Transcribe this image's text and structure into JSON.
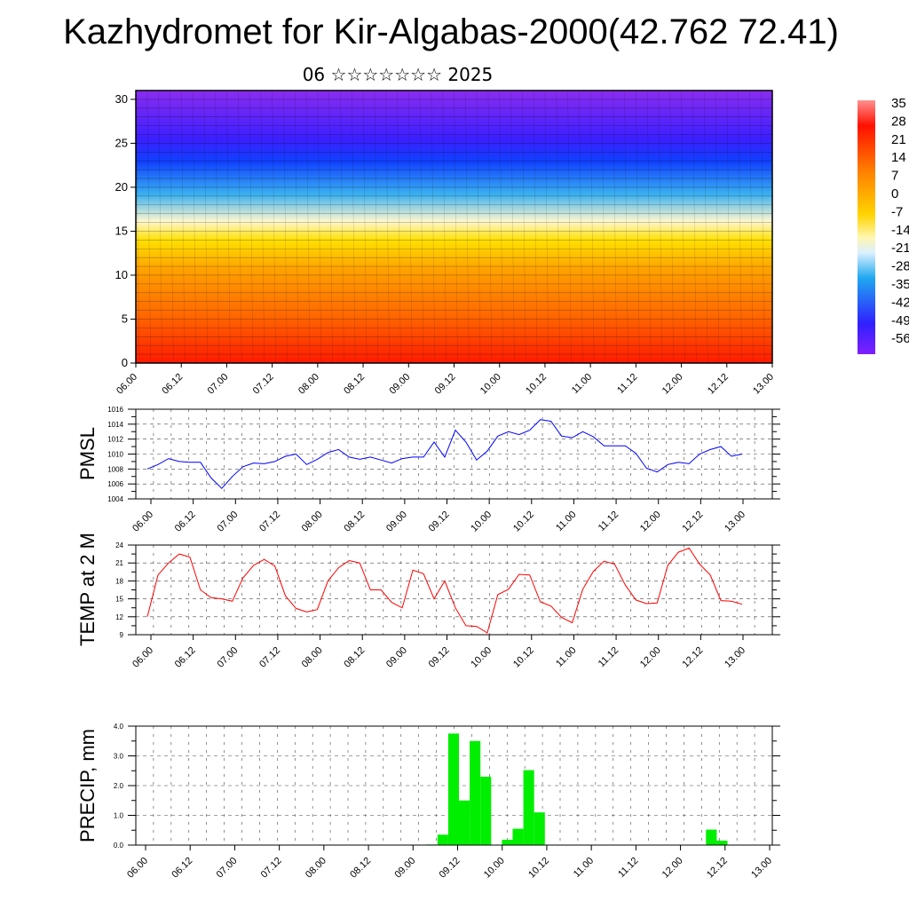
{
  "title": "Kazhydromet for Kir-Algabas-2000(42.762 72.41)",
  "subtitle": "06 ☆☆☆☆☆☆☆ 2025",
  "chart_data": [
    {
      "type": "heatmap",
      "y_ticks": [
        "0",
        "5",
        "10",
        "15",
        "20",
        "25",
        "30"
      ],
      "ylim": [
        0,
        31
      ],
      "x_ticks": [
        "06.00",
        "06.12",
        "07.00",
        "07.12",
        "08.00",
        "08.12",
        "09.00",
        "09.12",
        "10.00",
        "10.12",
        "11.00",
        "11.12",
        "12.00",
        "12.12",
        "13.00"
      ],
      "colorbar_labels": [
        "35",
        "28",
        "21",
        "14",
        "7",
        "0",
        "-7",
        "-14",
        "-21",
        "-28",
        "-35",
        "-42",
        "-49",
        "-56"
      ],
      "colors": [
        "#ff0000",
        "#ff7f00",
        "#ffd700",
        "#fff8c0",
        "#2aaaf0",
        "#2030ff",
        "#7f20ff"
      ]
    },
    {
      "type": "line",
      "ylabel": "PMSL",
      "y_ticks": [
        "1004",
        "1006",
        "1008",
        "1010",
        "1012",
        "1014",
        "1016"
      ],
      "ylim": [
        1004,
        1016
      ],
      "x_ticks": [
        "06.00",
        "06.12",
        "07.00",
        "07.12",
        "08.00",
        "08.12",
        "09.00",
        "09.12",
        "10.00",
        "10.12",
        "11.00",
        "11.12",
        "12.00",
        "12.12",
        "13.00"
      ],
      "values": [
        1008.0,
        1008.6,
        1009.4,
        1009.0,
        1008.9,
        1008.9,
        1006.8,
        1005.4,
        1007.0,
        1008.3,
        1008.8,
        1008.7,
        1009.0,
        1009.7,
        1010.0,
        1008.6,
        1009.3,
        1010.2,
        1010.6,
        1009.6,
        1009.3,
        1009.6,
        1009.2,
        1008.8,
        1009.4,
        1009.6,
        1009.6,
        1011.6,
        1009.6,
        1013.2,
        1011.6,
        1009.2,
        1010.4,
        1012.4,
        1013.0,
        1012.6,
        1013.2,
        1014.6,
        1014.4,
        1012.4,
        1012.2,
        1013.0,
        1012.3,
        1011.1,
        1011.1,
        1011.1,
        1010.1,
        1008.1,
        1007.6,
        1008.6,
        1008.9,
        1008.7,
        1010.0,
        1010.6,
        1011.0,
        1009.7,
        1010.0
      ],
      "color": "#0000ff"
    },
    {
      "type": "line",
      "ylabel": "TEMP at 2 M",
      "y_ticks": [
        "9",
        "12",
        "15",
        "18",
        "21",
        "24"
      ],
      "ylim": [
        9,
        24
      ],
      "x_ticks": [
        "06.00",
        "06.12",
        "07.00",
        "07.12",
        "08.00",
        "08.12",
        "09.00",
        "09.12",
        "10.00",
        "10.12",
        "11.00",
        "11.12",
        "12.00",
        "12.12",
        "13.00"
      ],
      "values": [
        12.0,
        19.0,
        21.0,
        22.5,
        22.0,
        16.5,
        15.2,
        15.0,
        14.6,
        18.5,
        20.6,
        21.6,
        20.5,
        15.5,
        13.4,
        12.8,
        13.2,
        18.0,
        20.2,
        21.4,
        21.0,
        16.5,
        16.5,
        14.4,
        13.5,
        19.8,
        19.2,
        15.0,
        18.0,
        13.5,
        10.5,
        10.4,
        9.3,
        15.7,
        16.6,
        19.1,
        19.0,
        14.5,
        13.8,
        11.9,
        11.0,
        16.6,
        19.6,
        21.3,
        20.8,
        17.3,
        14.8,
        14.2,
        14.3,
        20.6,
        22.8,
        23.5,
        20.8,
        19.0,
        14.7,
        14.6,
        14.1
      ],
      "color": "#ff0000"
    },
    {
      "type": "bar",
      "ylabel": "PRECIP, mm",
      "y_ticks": [
        "0.0",
        "1.0",
        "2.0",
        "3.0",
        "4.0"
      ],
      "ylim": [
        0,
        4
      ],
      "x_ticks": [
        "06.00",
        "06.12",
        "07.00",
        "07.12",
        "08.00",
        "08.12",
        "09.00",
        "09.12",
        "10.00",
        "10.12",
        "11.00",
        "11.12",
        "12.00",
        "12.12",
        "13.00"
      ],
      "values": [
        0,
        0,
        0,
        0,
        0,
        0,
        0,
        0,
        0,
        0,
        0,
        0,
        0,
        0,
        0,
        0,
        0,
        0,
        0,
        0,
        0,
        0,
        0,
        0,
        0,
        0,
        0,
        0.02,
        0.35,
        3.75,
        1.5,
        3.5,
        2.3,
        0,
        0.18,
        0.55,
        2.52,
        1.1,
        0,
        0,
        0,
        0,
        0,
        0,
        0,
        0,
        0,
        0,
        0,
        0,
        0,
        0,
        0,
        0.52,
        0.15,
        0
      ],
      "color": "#00ee00"
    }
  ]
}
